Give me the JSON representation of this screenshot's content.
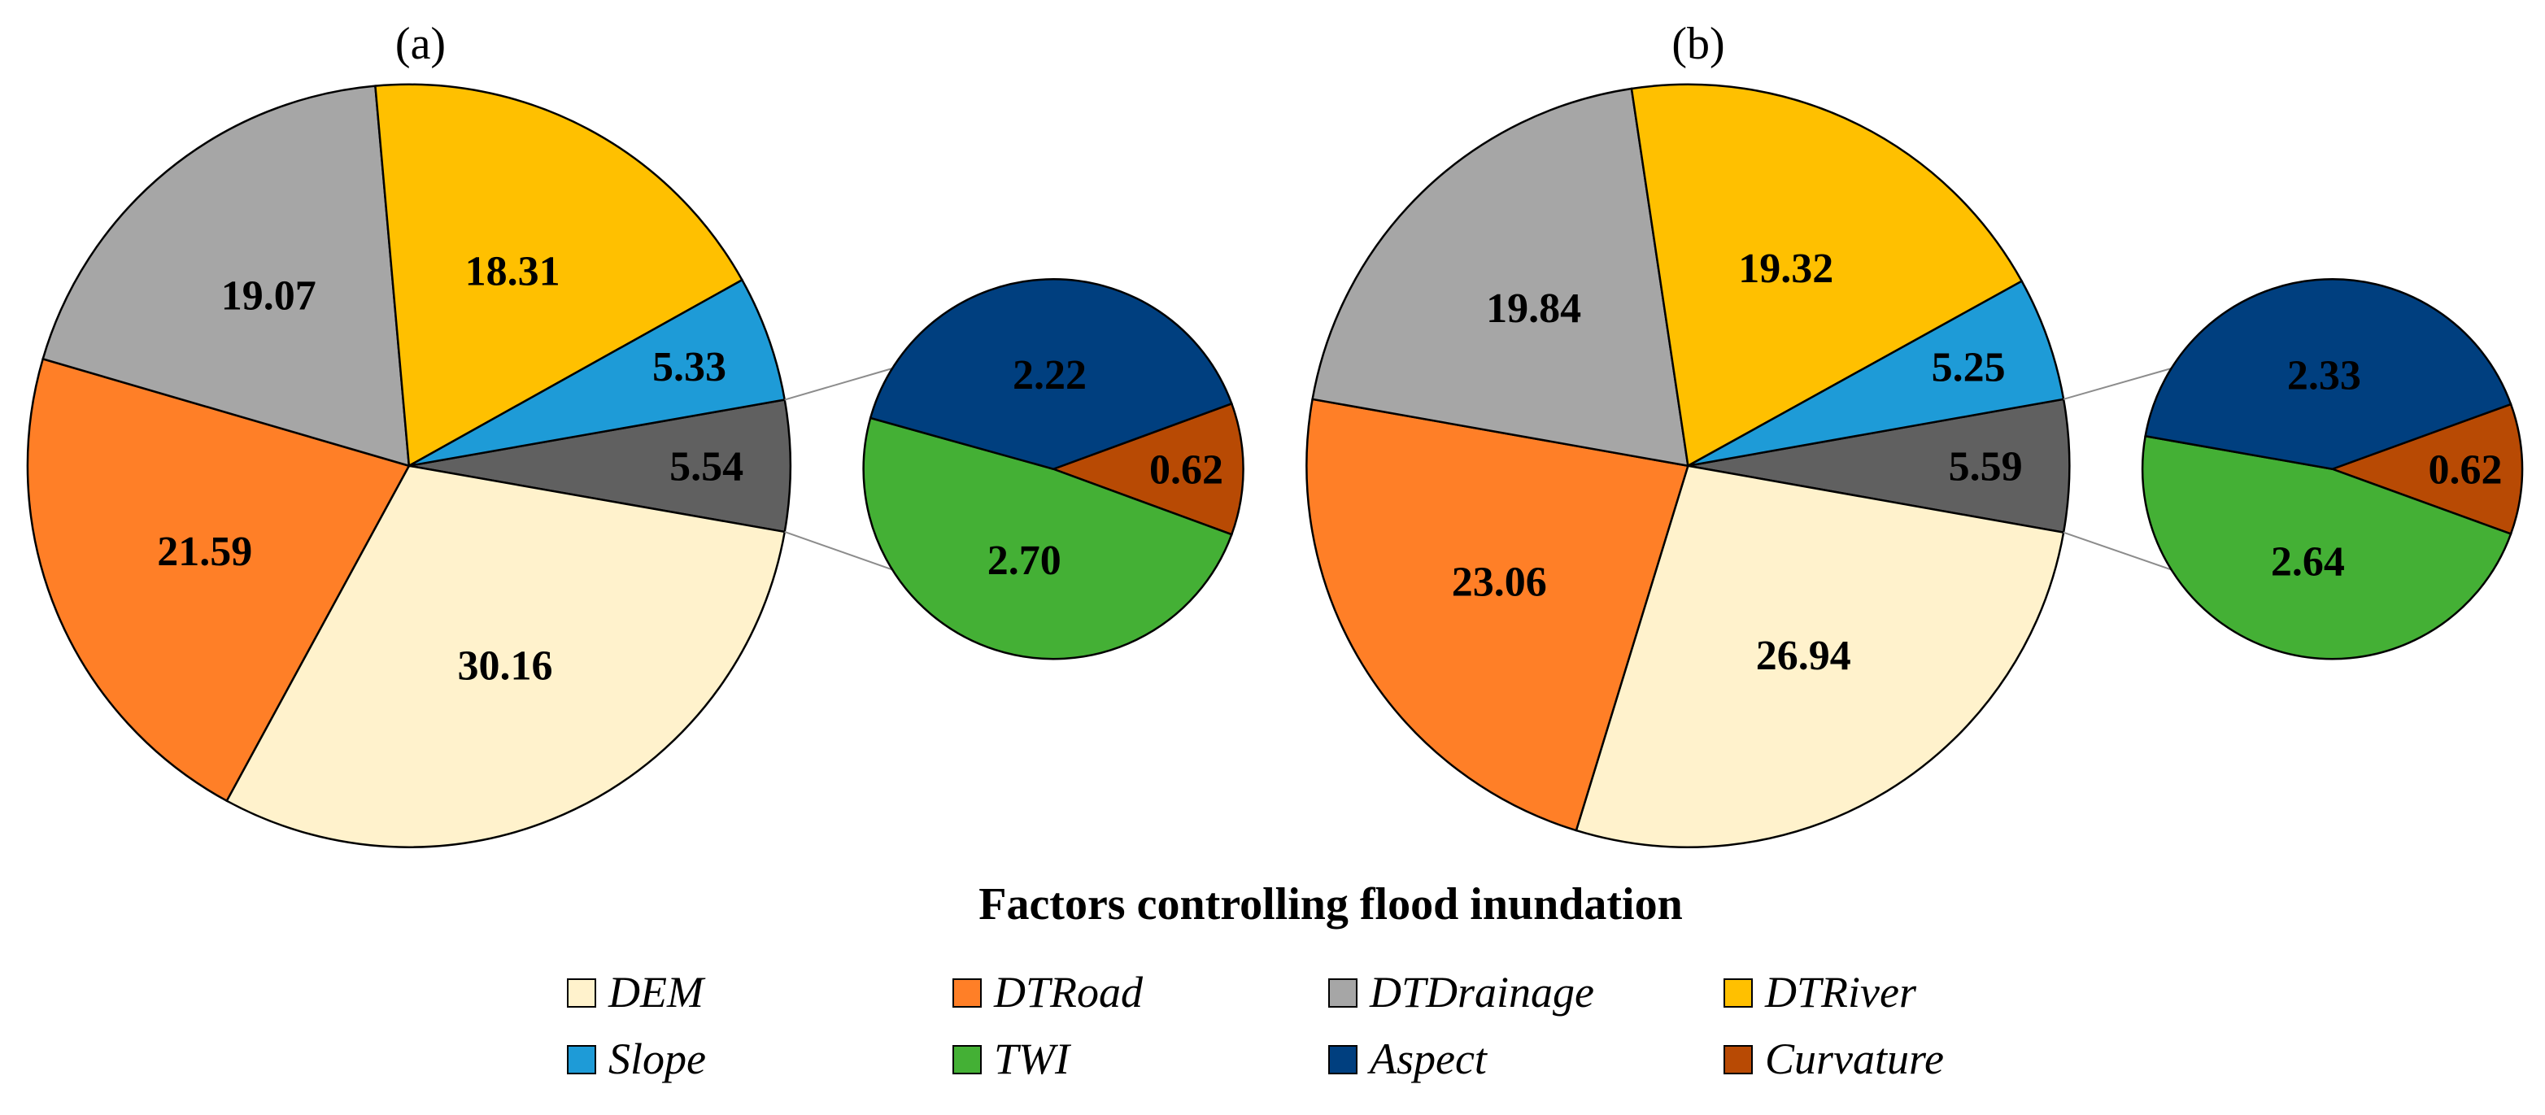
{
  "chart_data": [
    {
      "type": "pie",
      "panel_label": "(a)",
      "slices": [
        {
          "name": "Aspect + TWI + Curvature",
          "value": 5.54,
          "display": "5.54",
          "color": "#606060"
        },
        {
          "name": "DEM",
          "value": 30.16,
          "display": "30.16",
          "color": "#FFF2CC"
        },
        {
          "name": "DTRoad",
          "value": 21.59,
          "display": "21.59",
          "color": "#FF7F27"
        },
        {
          "name": "DTDrainage",
          "value": 19.07,
          "display": "19.07",
          "color": "#A6A6A6"
        },
        {
          "name": "DTRiver",
          "value": 18.31,
          "display": "18.31",
          "color": "#FFC000"
        },
        {
          "name": "Slope",
          "value": 5.33,
          "display": "5.33",
          "color": "#1E9BD7"
        }
      ],
      "sub_pie": [
        {
          "name": "Curvature",
          "value": 0.62,
          "display": "0.62",
          "color": "#B84A04"
        },
        {
          "name": "TWI",
          "value": 2.7,
          "display": "2.70",
          "color": "#44B035"
        },
        {
          "name": "Aspect",
          "value": 2.22,
          "display": "2.22",
          "color": "#003F7F"
        }
      ]
    },
    {
      "type": "pie",
      "panel_label": "(b)",
      "slices": [
        {
          "name": "Aspect + TWI + Curvature",
          "value": 5.59,
          "display": "5.59",
          "color": "#606060"
        },
        {
          "name": "DEM",
          "value": 26.94,
          "display": "26.94",
          "color": "#FFF2CC"
        },
        {
          "name": "DTRoad",
          "value": 23.06,
          "display": "23.06",
          "color": "#FF7F27"
        },
        {
          "name": "DTDrainage",
          "value": 19.84,
          "display": "19.84",
          "color": "#A6A6A6"
        },
        {
          "name": "DTRiver",
          "value": 19.32,
          "display": "19.32",
          "color": "#FFC000"
        },
        {
          "name": "Slope",
          "value": 5.25,
          "display": "5.25",
          "color": "#1E9BD7"
        }
      ],
      "sub_pie": [
        {
          "name": "Curvature",
          "value": 0.62,
          "display": "0.62",
          "color": "#B84A04"
        },
        {
          "name": "TWI",
          "value": 2.64,
          "display": "2.64",
          "color": "#44B035"
        },
        {
          "name": "Aspect",
          "value": 2.33,
          "display": "2.33",
          "color": "#003F7F"
        }
      ]
    }
  ],
  "legend": {
    "title": "Factors controlling flood inundation",
    "items": [
      {
        "label": "DEM",
        "color": "#FFF2CC"
      },
      {
        "label": "DTRoad",
        "color": "#FF7F27"
      },
      {
        "label": "DTDrainage",
        "color": "#A6A6A6"
      },
      {
        "label": "DTRiver",
        "color": "#FFC000"
      },
      {
        "label": "Slope",
        "color": "#1E9BD7"
      },
      {
        "label": "TWI",
        "color": "#44B035"
      },
      {
        "label": "Aspect",
        "color": "#003F7F"
      },
      {
        "label": "Curvature",
        "color": "#B84A04"
      }
    ]
  },
  "colors": {
    "outline": "#000000",
    "connector": "#8C8C8C"
  }
}
